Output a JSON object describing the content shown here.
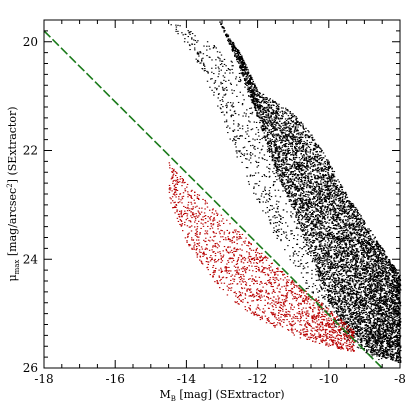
{
  "chart_data": {
    "type": "scatter",
    "title": "",
    "xlabel": {
      "main": "M",
      "sub": "B",
      "rest": " [mag] (SExtractor)"
    },
    "ylabel": {
      "greek": "μ",
      "sub": "max",
      "mid": " [mag/arcsec",
      "sup": "2",
      "rest": "] (SExtractor)"
    },
    "xlim": [
      -18,
      -8
    ],
    "ylim": [
      26,
      19.6
    ],
    "y_inverted": true,
    "x_ticks": [
      "-18",
      "-16",
      "-14",
      "-12",
      "-10",
      "-8"
    ],
    "y_ticks": [
      "20",
      "22",
      "24",
      "26"
    ],
    "colors": {
      "main": "#000000",
      "selected": "#b80000",
      "cut": "#1a7a1a"
    },
    "cut_line": {
      "style": "dashed",
      "x": [
        -18,
        -8.5
      ],
      "y": [
        19.8,
        26
      ]
    },
    "series": [
      {
        "role": "main",
        "density_envelope": [
          {
            "x": -13.1,
            "bright_y": 19.6,
            "faint_y": 19.6
          },
          {
            "x": -12.5,
            "bright_y": 20.2,
            "faint_y": 20.5
          },
          {
            "x": -12.0,
            "bright_y": 20.9,
            "faint_y": 21.4
          },
          {
            "x": -11.5,
            "bright_y": 21.1,
            "faint_y": 22.4
          },
          {
            "x": -11.0,
            "bright_y": 21.3,
            "faint_y": 23.1
          },
          {
            "x": -10.5,
            "bright_y": 21.7,
            "faint_y": 24.0
          },
          {
            "x": -10.0,
            "bright_y": 22.2,
            "faint_y": 24.8
          },
          {
            "x": -9.5,
            "bright_y": 22.8,
            "faint_y": 25.3
          },
          {
            "x": -9.0,
            "bright_y": 23.3,
            "faint_y": 25.7
          },
          {
            "x": -8.5,
            "bright_y": 23.8,
            "faint_y": 25.8
          },
          {
            "x": -8.0,
            "bright_y": 24.3,
            "faint_y": 25.9
          }
        ],
        "sparse_envelope": [
          {
            "x": -14.5,
            "bright_y": 19.6,
            "faint_y": 19.7
          },
          {
            "x": -13.5,
            "bright_y": 19.9,
            "faint_y": 20.6
          },
          {
            "x": -12.5,
            "bright_y": 20.5,
            "faint_y": 22.3
          },
          {
            "x": -11.5,
            "bright_y": 21.3,
            "faint_y": 23.6
          },
          {
            "x": -10.5,
            "bright_y": 22.0,
            "faint_y": 24.7
          },
          {
            "x": -9.5,
            "bright_y": 22.9,
            "faint_y": 25.5
          },
          {
            "x": -8.5,
            "bright_y": 23.9,
            "faint_y": 25.9
          }
        ]
      },
      {
        "role": "selected",
        "envelope": [
          {
            "x": -14.5,
            "bright_y": 22.2,
            "faint_y": 22.9
          },
          {
            "x": -14.0,
            "bright_y": 22.6,
            "faint_y": 23.7
          },
          {
            "x": -13.0,
            "bright_y": 23.2,
            "faint_y": 24.6
          },
          {
            "x": -12.0,
            "bright_y": 23.8,
            "faint_y": 25.1
          },
          {
            "x": -11.0,
            "bright_y": 24.4,
            "faint_y": 25.4
          },
          {
            "x": -10.0,
            "bright_y": 24.9,
            "faint_y": 25.6
          },
          {
            "x": -9.3,
            "bright_y": 25.3,
            "faint_y": 25.7
          }
        ]
      }
    ]
  }
}
